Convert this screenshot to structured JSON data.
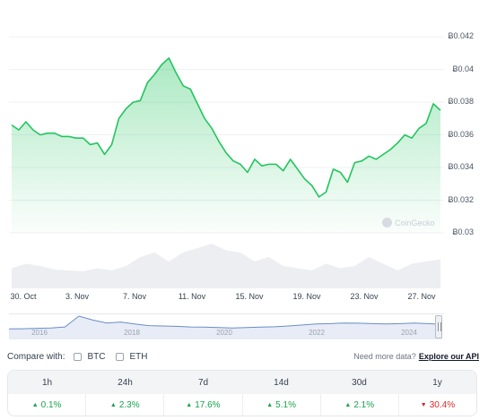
{
  "chart_data": {
    "type": "area",
    "y_ticks": [
      "Ƀ0.042",
      "Ƀ0.04",
      "Ƀ0.038",
      "Ƀ0.036",
      "Ƀ0.034",
      "Ƀ0.032",
      "Ƀ0.03"
    ],
    "x_ticks": [
      "30. Oct",
      "3. Nov",
      "7. Nov",
      "11. Nov",
      "15. Nov",
      "19. Nov",
      "23. Nov",
      "27. Nov"
    ],
    "ylim": [
      0.03,
      0.0425
    ],
    "xlim": [
      0,
      30
    ],
    "grid": true,
    "series": [
      {
        "x": [
          0,
          0.5,
          1,
          1.5,
          2,
          2.5,
          3,
          3.5,
          4,
          4.5,
          5,
          5.5,
          6,
          6.5,
          7,
          7.5,
          8,
          8.5,
          9,
          9.5,
          10,
          10.5,
          11,
          11.5,
          12,
          12.5,
          13,
          13.5,
          14,
          14.5,
          15,
          15.5,
          16,
          16.5,
          17,
          17.5,
          18,
          18.5,
          19,
          19.5,
          20,
          20.5,
          21,
          21.5,
          22,
          22.5,
          23,
          23.5,
          24,
          24.5,
          25,
          25.5,
          26,
          26.5,
          27,
          27.5,
          28,
          28.5,
          29,
          29.5,
          30
        ],
        "y": [
          0.0366,
          0.0363,
          0.0368,
          0.0363,
          0.036,
          0.0361,
          0.0361,
          0.0359,
          0.0359,
          0.0358,
          0.0358,
          0.0354,
          0.0355,
          0.0348,
          0.0354,
          0.037,
          0.0376,
          0.038,
          0.0381,
          0.0392,
          0.0397,
          0.0403,
          0.0407,
          0.0398,
          0.039,
          0.0388,
          0.0379,
          0.037,
          0.0364,
          0.0356,
          0.0349,
          0.0344,
          0.0342,
          0.0337,
          0.0345,
          0.0341,
          0.0342,
          0.0342,
          0.0338,
          0.0345,
          0.0339,
          0.0333,
          0.0329,
          0.0322,
          0.0325,
          0.0339,
          0.0337,
          0.0331,
          0.0343,
          0.0344,
          0.0347,
          0.0345,
          0.0348,
          0.0351,
          0.0355,
          0.036,
          0.0358,
          0.0364,
          0.0367,
          0.0379,
          0.0375
        ]
      }
    ],
    "volume_series": {
      "x": [
        0,
        1,
        2,
        3,
        4,
        5,
        6,
        7,
        8,
        9,
        10,
        11,
        12,
        13,
        14,
        15,
        16,
        17,
        18,
        19,
        20,
        21,
        22,
        23,
        24,
        25,
        26,
        27,
        28,
        29,
        30
      ],
      "values": [
        0.45,
        0.55,
        0.5,
        0.42,
        0.4,
        0.38,
        0.45,
        0.4,
        0.5,
        0.7,
        0.8,
        0.6,
        0.8,
        0.9,
        1.0,
        0.85,
        0.8,
        0.6,
        0.7,
        0.5,
        0.45,
        0.4,
        0.55,
        0.45,
        0.5,
        0.7,
        0.55,
        0.4,
        0.55,
        0.6,
        0.65
      ]
    },
    "watermark": "CoinGecko"
  },
  "navigator": {
    "years": [
      "2016",
      "2018",
      "2020",
      "2022",
      "2024"
    ],
    "series": [
      0.35,
      0.36,
      0.38,
      0.4,
      0.45,
      1.0,
      0.8,
      0.65,
      0.7,
      0.6,
      0.52,
      0.5,
      0.48,
      0.45,
      0.44,
      0.42,
      0.4,
      0.42,
      0.44,
      0.46,
      0.5,
      0.55,
      0.6,
      0.62,
      0.65,
      0.64,
      0.62,
      0.6,
      0.62,
      0.65,
      0.62,
      0.58
    ]
  },
  "compare": {
    "label": "Compare with:",
    "options": [
      "BTC",
      "ETH"
    ],
    "need_more": "Need more data?",
    "explore": "Explore our API"
  },
  "performance": [
    {
      "period": "1h",
      "change": "0.1%",
      "dir": "up"
    },
    {
      "period": "24h",
      "change": "2.3%",
      "dir": "up"
    },
    {
      "period": "7d",
      "change": "17.6%",
      "dir": "up"
    },
    {
      "period": "14d",
      "change": "5.1%",
      "dir": "up"
    },
    {
      "period": "30d",
      "change": "2.1%",
      "dir": "up"
    },
    {
      "period": "1y",
      "change": "30.4%",
      "dir": "down"
    }
  ],
  "colors": {
    "up": "#16a34a",
    "down": "#dc2626",
    "line": "#22c55e",
    "navigator": "#6b8cc9"
  }
}
